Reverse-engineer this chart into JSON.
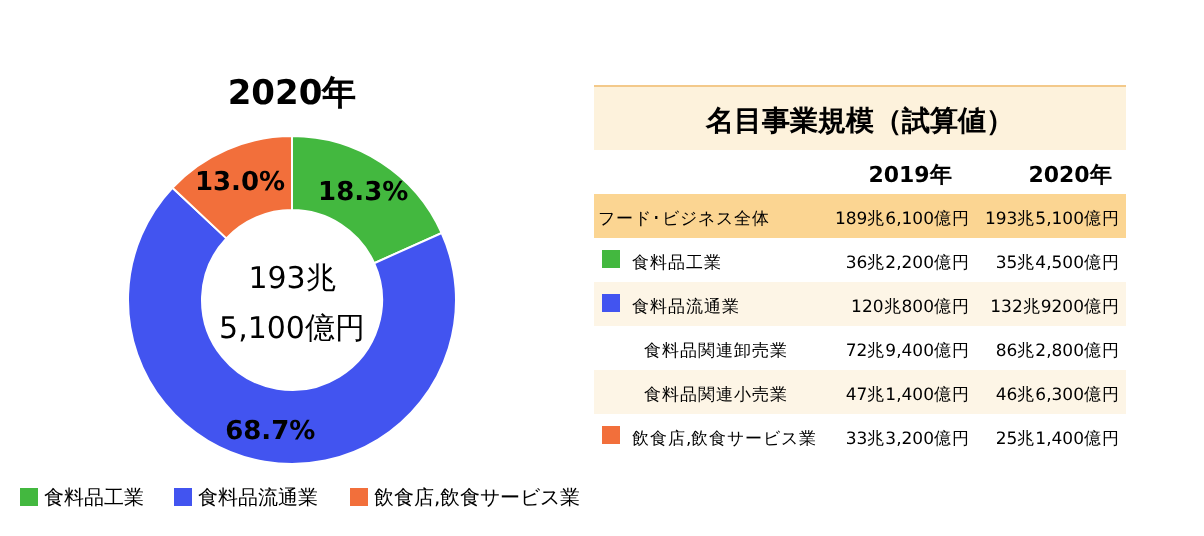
{
  "chart_data": [
    {
      "type": "donut",
      "title": "2020年",
      "categories": [
        "食料品工業",
        "食料品流通業",
        "飲食店,飲食サービス業"
      ],
      "values": [
        18.3,
        68.7,
        13.0
      ],
      "colors": [
        "#43b83f",
        "#4254f0",
        "#f26f3b"
      ],
      "value_labels": [
        "18.3%",
        "68.7%",
        "13.0%"
      ],
      "legend": "bottom",
      "annotations": [
        "193兆",
        "5,100億円"
      ]
    },
    {
      "type": "other",
      "title": "名目事業規模（試算値）",
      "categories": [
        "2019年",
        "2020年"
      ],
      "y_categories": [
        "フード･ビジネス全体",
        "食料品工業",
        "食料品流通業",
        "食料品関連卸売業",
        "食料品関連小売業",
        "飲食店,飲食サービス業"
      ],
      "colors": [
        null,
        "#43b83f",
        "#4254f0",
        null,
        null,
        "#f26f3b"
      ],
      "cell_labels": [
        [
          "189兆6,100億円",
          "193兆5,100億円"
        ],
        [
          "36兆2,200億円",
          "35兆4,500億円"
        ],
        [
          "120兆800億円",
          "132兆9200億円"
        ],
        [
          "72兆9,400億円",
          "86兆2,800億円"
        ],
        [
          "47兆1,400億円",
          "46兆6,300億円"
        ],
        [
          "33兆3,200億円",
          "25兆1,400億円"
        ]
      ]
    }
  ]
}
